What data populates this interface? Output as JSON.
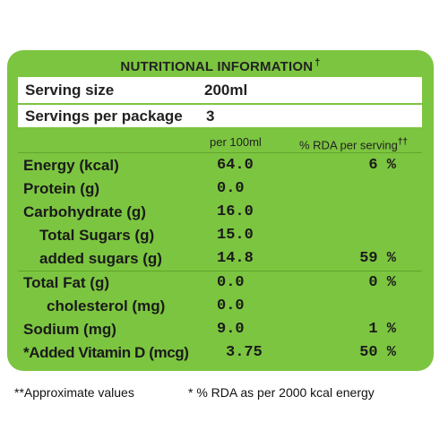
{
  "label": {
    "title": "NUTRITIONAL INFORMATION",
    "title_mark": "†",
    "serving": {
      "size_label": "Serving size",
      "size_value": "200ml",
      "per_package_label": "Servings per package",
      "per_package_value": "3"
    },
    "columns": {
      "per100": "per 100ml",
      "rda": "% RDA per serving",
      "rda_mark": "††"
    },
    "rows": [
      {
        "name": "Energy (kcal)",
        "per100": "64.0",
        "rda": "6 %"
      },
      {
        "name": "Protein (g)",
        "per100": "0.0",
        "rda": ""
      },
      {
        "name": "Carbohydrate (g)",
        "per100": "16.0",
        "rda": ""
      },
      {
        "name": "Total Sugars (g)",
        "per100": "15.0",
        "rda": ""
      },
      {
        "name": "added sugars (g)",
        "per100": "14.8",
        "rda": "59 %"
      },
      {
        "name": "Total Fat (g)",
        "per100": "0.0",
        "rda": "0 %"
      },
      {
        "name": "cholesterol (mg)",
        "per100": "0.0",
        "rda": ""
      },
      {
        "name": "Sodium (mg)",
        "per100": "9.0",
        "rda": "1 %"
      },
      {
        "name": "*Added Vitamin D (mcg)",
        "per100": "3.75",
        "rda": "50 %"
      }
    ]
  },
  "footer": {
    "approx": "**Approximate values",
    "rda_note": "* % RDA as per 2000 kcal energy"
  },
  "colors": {
    "label_green": "#7cc540",
    "text": "#222222"
  }
}
